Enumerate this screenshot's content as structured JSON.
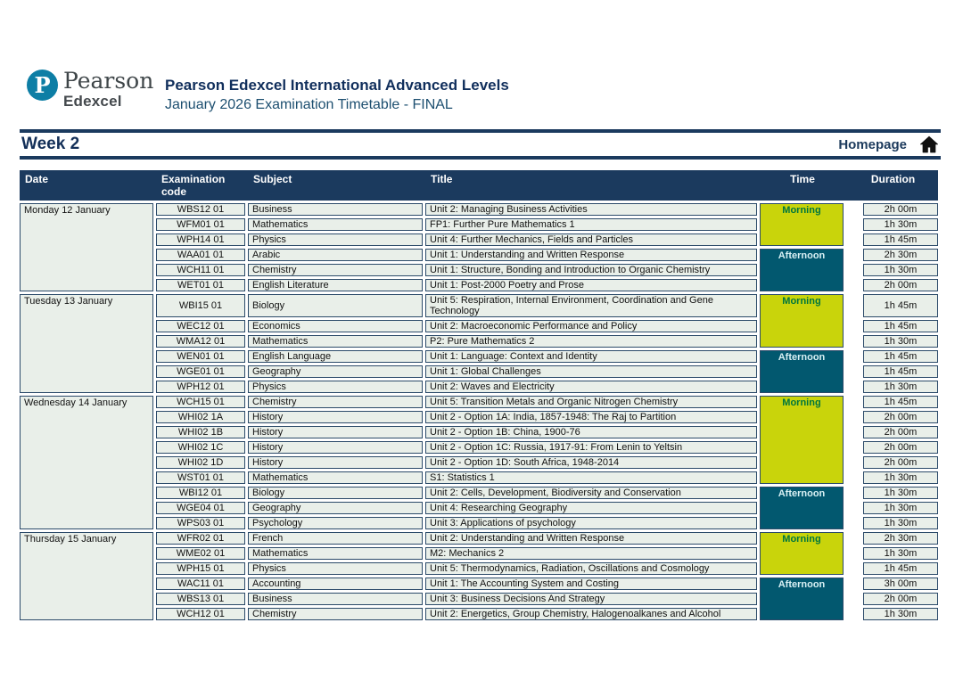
{
  "brand": {
    "logo_letter": "P",
    "name": "Pearson",
    "sub": "Edexcel"
  },
  "header": {
    "title": "Pearson Edexcel International Advanced Levels",
    "subtitle": "January 2026 Examination Timetable - FINAL"
  },
  "nav": {
    "week_title": "Week 2",
    "homepage_label": "Homepage",
    "home_icon": "home-icon"
  },
  "colors": {
    "navy": "#1b3a5e",
    "border": "#2b4a69",
    "cellBg": "#e9efe9",
    "lime": "#c9d40b",
    "limeText": "#00763d",
    "teal": "#02586f",
    "tealText": "#d8f0f4",
    "logoTeal": "#0d7ea5"
  },
  "table": {
    "columns": [
      "Date",
      "Examination code",
      "Subject",
      "Title",
      "Time",
      "Duration"
    ],
    "days": [
      {
        "date": "Monday 12 January",
        "sessions": [
          {
            "time": "Morning",
            "exams": [
              {
                "code": "WBS12 01",
                "subject": "Business",
                "title": "Unit 2: Managing Business Activities",
                "duration": "2h 00m"
              },
              {
                "code": "WFM01 01",
                "subject": "Mathematics",
                "title": "FP1: Further Pure Mathematics 1",
                "duration": "1h 30m"
              },
              {
                "code": "WPH14 01",
                "subject": "Physics",
                "title": "Unit 4: Further Mechanics, Fields and Particles",
                "duration": "1h 45m"
              }
            ]
          },
          {
            "time": "Afternoon",
            "exams": [
              {
                "code": "WAA01 01",
                "subject": "Arabic",
                "title": "Unit 1: Understanding and Written Response",
                "duration": "2h 30m"
              },
              {
                "code": "WCH11 01",
                "subject": "Chemistry",
                "title": "Unit 1: Structure, Bonding and Introduction to Organic Chemistry",
                "duration": "1h 30m"
              },
              {
                "code": "WET01 01",
                "subject": "English Literature",
                "title": "Unit 1: Post-2000 Poetry and Prose",
                "duration": "2h 00m"
              }
            ]
          }
        ]
      },
      {
        "date": "Tuesday 13 January",
        "sessions": [
          {
            "time": "Morning",
            "exams": [
              {
                "code": "WBI15 01",
                "subject": "Biology",
                "title": "Unit 5: Respiration, Internal Environment, Coordination and Gene Technology",
                "duration": "1h 45m"
              },
              {
                "code": "WEC12 01",
                "subject": "Economics",
                "title": "Unit 2: Macroeconomic Performance and Policy",
                "duration": "1h 45m"
              },
              {
                "code": "WMA12 01",
                "subject": "Mathematics",
                "title": "P2: Pure Mathematics 2",
                "duration": "1h 30m"
              }
            ]
          },
          {
            "time": "Afternoon",
            "exams": [
              {
                "code": "WEN01 01",
                "subject": "English Language",
                "title": "Unit 1: Language: Context and Identity",
                "duration": "1h 45m"
              },
              {
                "code": "WGE01 01",
                "subject": "Geography",
                "title": "Unit 1: Global Challenges",
                "duration": "1h 45m"
              },
              {
                "code": "WPH12 01",
                "subject": "Physics",
                "title": "Unit 2: Waves and Electricity",
                "duration": "1h 30m"
              }
            ]
          }
        ]
      },
      {
        "date": "Wednesday 14 January",
        "sessions": [
          {
            "time": "Morning",
            "exams": [
              {
                "code": "WCH15 01",
                "subject": "Chemistry",
                "title": "Unit 5: Transition Metals and Organic Nitrogen Chemistry",
                "duration": "1h 45m"
              },
              {
                "code": "WHI02 1A",
                "subject": "History",
                "title": "Unit 2 - Option 1A: India, 1857-1948: The Raj to Partition",
                "duration": "2h 00m"
              },
              {
                "code": "WHI02 1B",
                "subject": "History",
                "title": "Unit 2 - Option 1B: China, 1900-76",
                "duration": "2h 00m"
              },
              {
                "code": "WHI02 1C",
                "subject": "History",
                "title": "Unit 2 - Option 1C: Russia, 1917-91: From Lenin to Yeltsin",
                "duration": "2h 00m"
              },
              {
                "code": "WHI02 1D",
                "subject": "History",
                "title": "Unit 2 - Option 1D: South Africa, 1948-2014",
                "duration": "2h 00m"
              },
              {
                "code": "WST01 01",
                "subject": "Mathematics",
                "title": "S1: Statistics 1",
                "duration": "1h 30m"
              }
            ]
          },
          {
            "time": "Afternoon",
            "exams": [
              {
                "code": "WBI12 01",
                "subject": "Biology",
                "title": "Unit 2: Cells, Development, Biodiversity and Conservation",
                "duration": "1h 30m"
              },
              {
                "code": "WGE04 01",
                "subject": "Geography",
                "title": "Unit 4: Researching Geography",
                "duration": "1h 30m"
              },
              {
                "code": "WPS03 01",
                "subject": "Psychology",
                "title": "Unit 3: Applications of psychology",
                "duration": "1h 30m"
              }
            ]
          }
        ]
      },
      {
        "date": "Thursday 15 January",
        "sessions": [
          {
            "time": "Morning",
            "exams": [
              {
                "code": "WFR02 01",
                "subject": "French",
                "title": "Unit 2: Understanding and Written Response",
                "duration": "2h 30m"
              },
              {
                "code": "WME02 01",
                "subject": "Mathematics",
                "title": "M2: Mechanics 2",
                "duration": "1h 30m"
              },
              {
                "code": "WPH15 01",
                "subject": "Physics",
                "title": "Unit 5: Thermodynamics, Radiation, Oscillations and Cosmology",
                "duration": "1h 45m"
              }
            ]
          },
          {
            "time": "Afternoon",
            "exams": [
              {
                "code": "WAC11 01",
                "subject": "Accounting",
                "title": "Unit 1: The Accounting System and Costing",
                "duration": "3h 00m"
              },
              {
                "code": "WBS13 01",
                "subject": "Business",
                "title": "Unit 3: Business Decisions And Strategy",
                "duration": "2h 00m"
              },
              {
                "code": "WCH12 01",
                "subject": "Chemistry",
                "title": "Unit 2: Energetics, Group Chemistry, Halogenoalkanes and Alcohol",
                "duration": "1h 30m"
              }
            ]
          }
        ]
      }
    ]
  }
}
